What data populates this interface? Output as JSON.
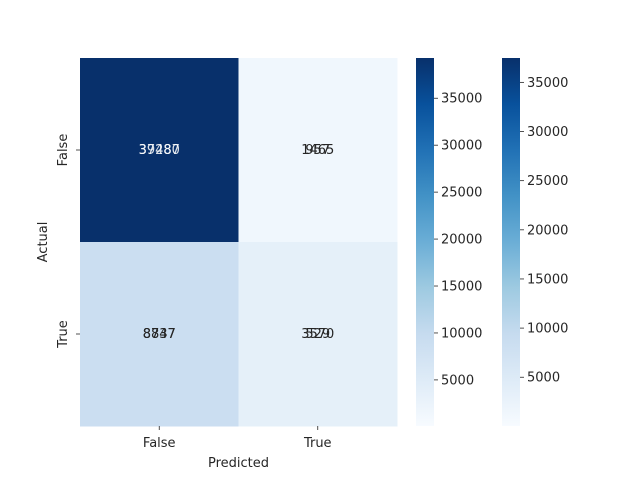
{
  "chart_data": {
    "type": "heatmap",
    "title": "",
    "xlabel": "Predicted",
    "ylabel": "Actual",
    "x_categories": [
      "False",
      "True"
    ],
    "y_categories": [
      "False",
      "True"
    ],
    "colormap": "Blues",
    "layers": [
      {
        "name": "",
        "values": [
          [
            39287,
            1465
          ],
          [
            8837,
            3570
          ]
        ],
        "vmin": 90,
        "vmax": 39287,
        "colorbar_ticks": [
          5000,
          10000,
          15000,
          20000,
          25000,
          30000,
          35000
        ]
      },
      {
        "name": "",
        "values": [
          [
            37480,
            957
          ],
          [
            8747,
            529
          ]
        ],
        "vmin": 40,
        "vmax": 37480,
        "colorbar_ticks": [
          5000,
          10000,
          15000,
          20000,
          25000,
          30000,
          35000
        ]
      }
    ],
    "cell_labels_top": [
      [
        "39287",
        "1465"
      ],
      [
        "8837",
        "3570"
      ]
    ],
    "cell_labels_under": [
      [
        "37480",
        "957"
      ],
      [
        "8747",
        "529"
      ]
    ]
  }
}
